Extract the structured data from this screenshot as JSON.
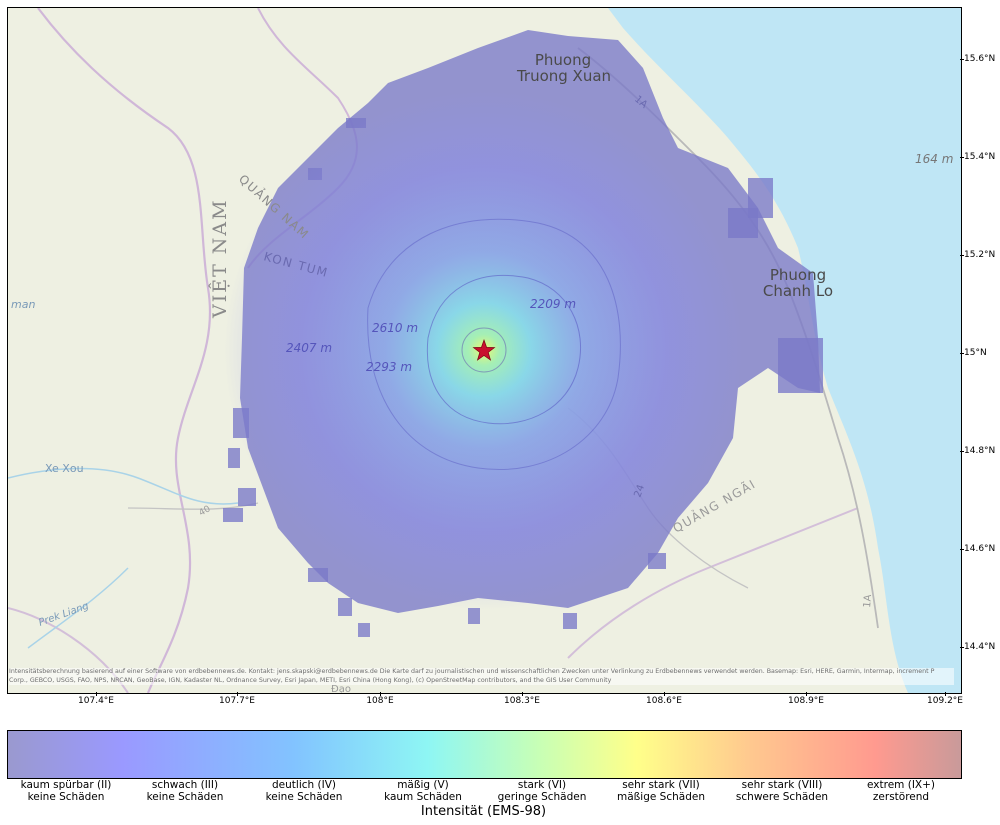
{
  "map": {
    "place_labels": [
      {
        "key": "truong_xuan",
        "lines": [
          "Phuong",
          "Truong Xuan"
        ]
      },
      {
        "key": "chanh_lo",
        "lines": [
          "Phuong",
          "Chanh Lo"
        ]
      }
    ],
    "region_labels": {
      "viet_nam": "VIỆT NAM",
      "quang_nam": "QUẢNG NAM",
      "kon_tum": "KON TUM",
      "quang_ngai": "QUẢNG NGÃI",
      "man": "man",
      "xe_xou": "Xe Xou",
      "prek_liang": "Prek Liang",
      "dao": "Đạo"
    },
    "elevation_labels": {
      "e164": "164 m",
      "e2209": "2209 m",
      "e2610": "2610 m",
      "e2407": "2407 m",
      "e2293": "2293 m"
    },
    "road_labels": {
      "r1a_north": "1A",
      "r1a_south": "1A",
      "r24": "24",
      "r40": "40"
    },
    "epicenter_icon": "star-icon",
    "lon_ticks": [
      "107.4°E",
      "107.7°E",
      "108°E",
      "108.3°E",
      "108.6°E",
      "108.9°E",
      "109.2°E"
    ],
    "lat_ticks": [
      "15.6°N",
      "15.4°N",
      "15.2°N",
      "15°N",
      "14.8°N",
      "14.6°N",
      "14.4°N"
    ],
    "credits": "Intensitätsberechnung basierend auf einer Software von erdbebennews.de. Kontakt: jens.skapski@erdbebennews.de Die Karte darf zu journalistischen und wissenschaftlichen Zwecken unter Verlinkung zu Erdbebennews verwendet werden. Basemap: Esri, HERE, Garmin, Intermap, increment P Corp., GEBCO, USGS, FAO, NPS, NRCAN, GeoBase, IGN, Kadaster NL, Ordnance Survey, Esri Japan, METI, Esri China (Hong Kong), (c) OpenStreetMap contributors, and the GIS User Community",
    "colors": {
      "water": "#bfe6f5",
      "land": "#eef0e2",
      "intensity_low": "#7a78c8",
      "epicenter": "#c8102e"
    }
  },
  "colorbar": {
    "title": "Intensität (EMS-98)",
    "levels": [
      {
        "l1": "kaum spürbar (II)",
        "l2": "keine Schäden"
      },
      {
        "l1": "schwach (III)",
        "l2": "keine Schäden"
      },
      {
        "l1": "deutlich (IV)",
        "l2": "keine Schäden"
      },
      {
        "l1": "mäßig (V)",
        "l2": "kaum Schäden"
      },
      {
        "l1": "stark (VI)",
        "l2": "geringe Schäden"
      },
      {
        "l1": "sehr stark (VII)",
        "l2": "mäßige Schäden"
      },
      {
        "l1": "sehr stark (VIII)",
        "l2": "schwere Schäden"
      },
      {
        "l1": "extrem (IX+)",
        "l2": "zerstörend"
      }
    ]
  }
}
